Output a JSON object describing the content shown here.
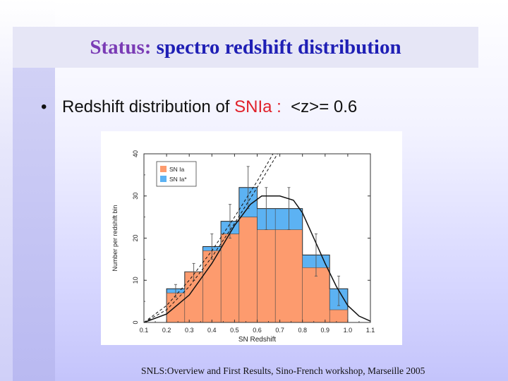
{
  "title": {
    "part1": "Status:",
    "part2": "spectro redshift distribution"
  },
  "bullet": {
    "marker": "•",
    "text_before": "Redshift distribution of ",
    "highlight": "SNIa :",
    "text_after": "  <z>= 0.6"
  },
  "footer": "SNLS:Overview and First Results, Sino-French workshop, Marseille 2005",
  "colors": {
    "snia": "#fd9b6e",
    "snia_star": "#5cb2f3",
    "title_part1": "#7a3bb5",
    "title_part2": "#1f1fb5",
    "highlight": "#e0202a"
  },
  "chart_data": {
    "type": "bar",
    "xlabel": "SN Redshift",
    "ylabel": "Number per redshift bin",
    "xlim": [
      0.1,
      1.1
    ],
    "ylim": [
      0,
      40
    ],
    "x_ticks": [
      "0.1",
      "0.2",
      "0.3",
      "0.4",
      "0.5",
      "0.6",
      "0.7",
      "0.8",
      "0.9",
      "1.0",
      "1.1"
    ],
    "y_ticks": [
      "0",
      "10",
      "20",
      "30",
      "40"
    ],
    "bin_edges": [
      0.2,
      0.28,
      0.36,
      0.44,
      0.52,
      0.6,
      0.68,
      0.8,
      0.92,
      1.0
    ],
    "series": [
      {
        "name": "SN Ia",
        "values": [
          7,
          12,
          17,
          21,
          25,
          22,
          22,
          13,
          3
        ],
        "color": "#fd9b6e"
      },
      {
        "name": "SN Ia*",
        "values": [
          8,
          12,
          18,
          24,
          32,
          27,
          27,
          16,
          8
        ],
        "color": "#5cb2f3"
      }
    ],
    "error_bars": [
      {
        "x": 0.24,
        "low": 6,
        "high": 9
      },
      {
        "x": 0.32,
        "low": 10,
        "high": 14
      },
      {
        "x": 0.4,
        "low": 15,
        "high": 21
      },
      {
        "x": 0.48,
        "low": 20,
        "high": 28
      },
      {
        "x": 0.56,
        "low": 27,
        "high": 37
      },
      {
        "x": 0.64,
        "low": 22,
        "high": 32
      },
      {
        "x": 0.74,
        "low": 22,
        "high": 32
      },
      {
        "x": 0.86,
        "low": 11,
        "high": 21
      },
      {
        "x": 0.96,
        "low": 4,
        "high": 11
      }
    ],
    "curves": [
      {
        "style": "solid",
        "points": [
          [
            0.1,
            0
          ],
          [
            0.2,
            2
          ],
          [
            0.3,
            6.5
          ],
          [
            0.4,
            14
          ],
          [
            0.5,
            23
          ],
          [
            0.57,
            28
          ],
          [
            0.62,
            30
          ],
          [
            0.7,
            30
          ],
          [
            0.76,
            29
          ],
          [
            0.8,
            26
          ],
          [
            0.85,
            20
          ],
          [
            0.9,
            14
          ],
          [
            0.95,
            8.5
          ],
          [
            1.0,
            4
          ],
          [
            1.05,
            1.5
          ],
          [
            1.1,
            0.3
          ]
        ]
      },
      {
        "style": "dashed",
        "points": [
          [
            0.1,
            0
          ],
          [
            0.2,
            4
          ],
          [
            0.3,
            10
          ],
          [
            0.4,
            17
          ],
          [
            0.5,
            25
          ],
          [
            0.6,
            33.5
          ],
          [
            0.67,
            40
          ]
        ]
      },
      {
        "style": "dashed",
        "points": [
          [
            0.1,
            0
          ],
          [
            0.2,
            3
          ],
          [
            0.3,
            8.5
          ],
          [
            0.4,
            15.5
          ],
          [
            0.5,
            23.5
          ],
          [
            0.6,
            32
          ],
          [
            0.69,
            40
          ]
        ]
      }
    ],
    "legend_position": "top-left"
  }
}
